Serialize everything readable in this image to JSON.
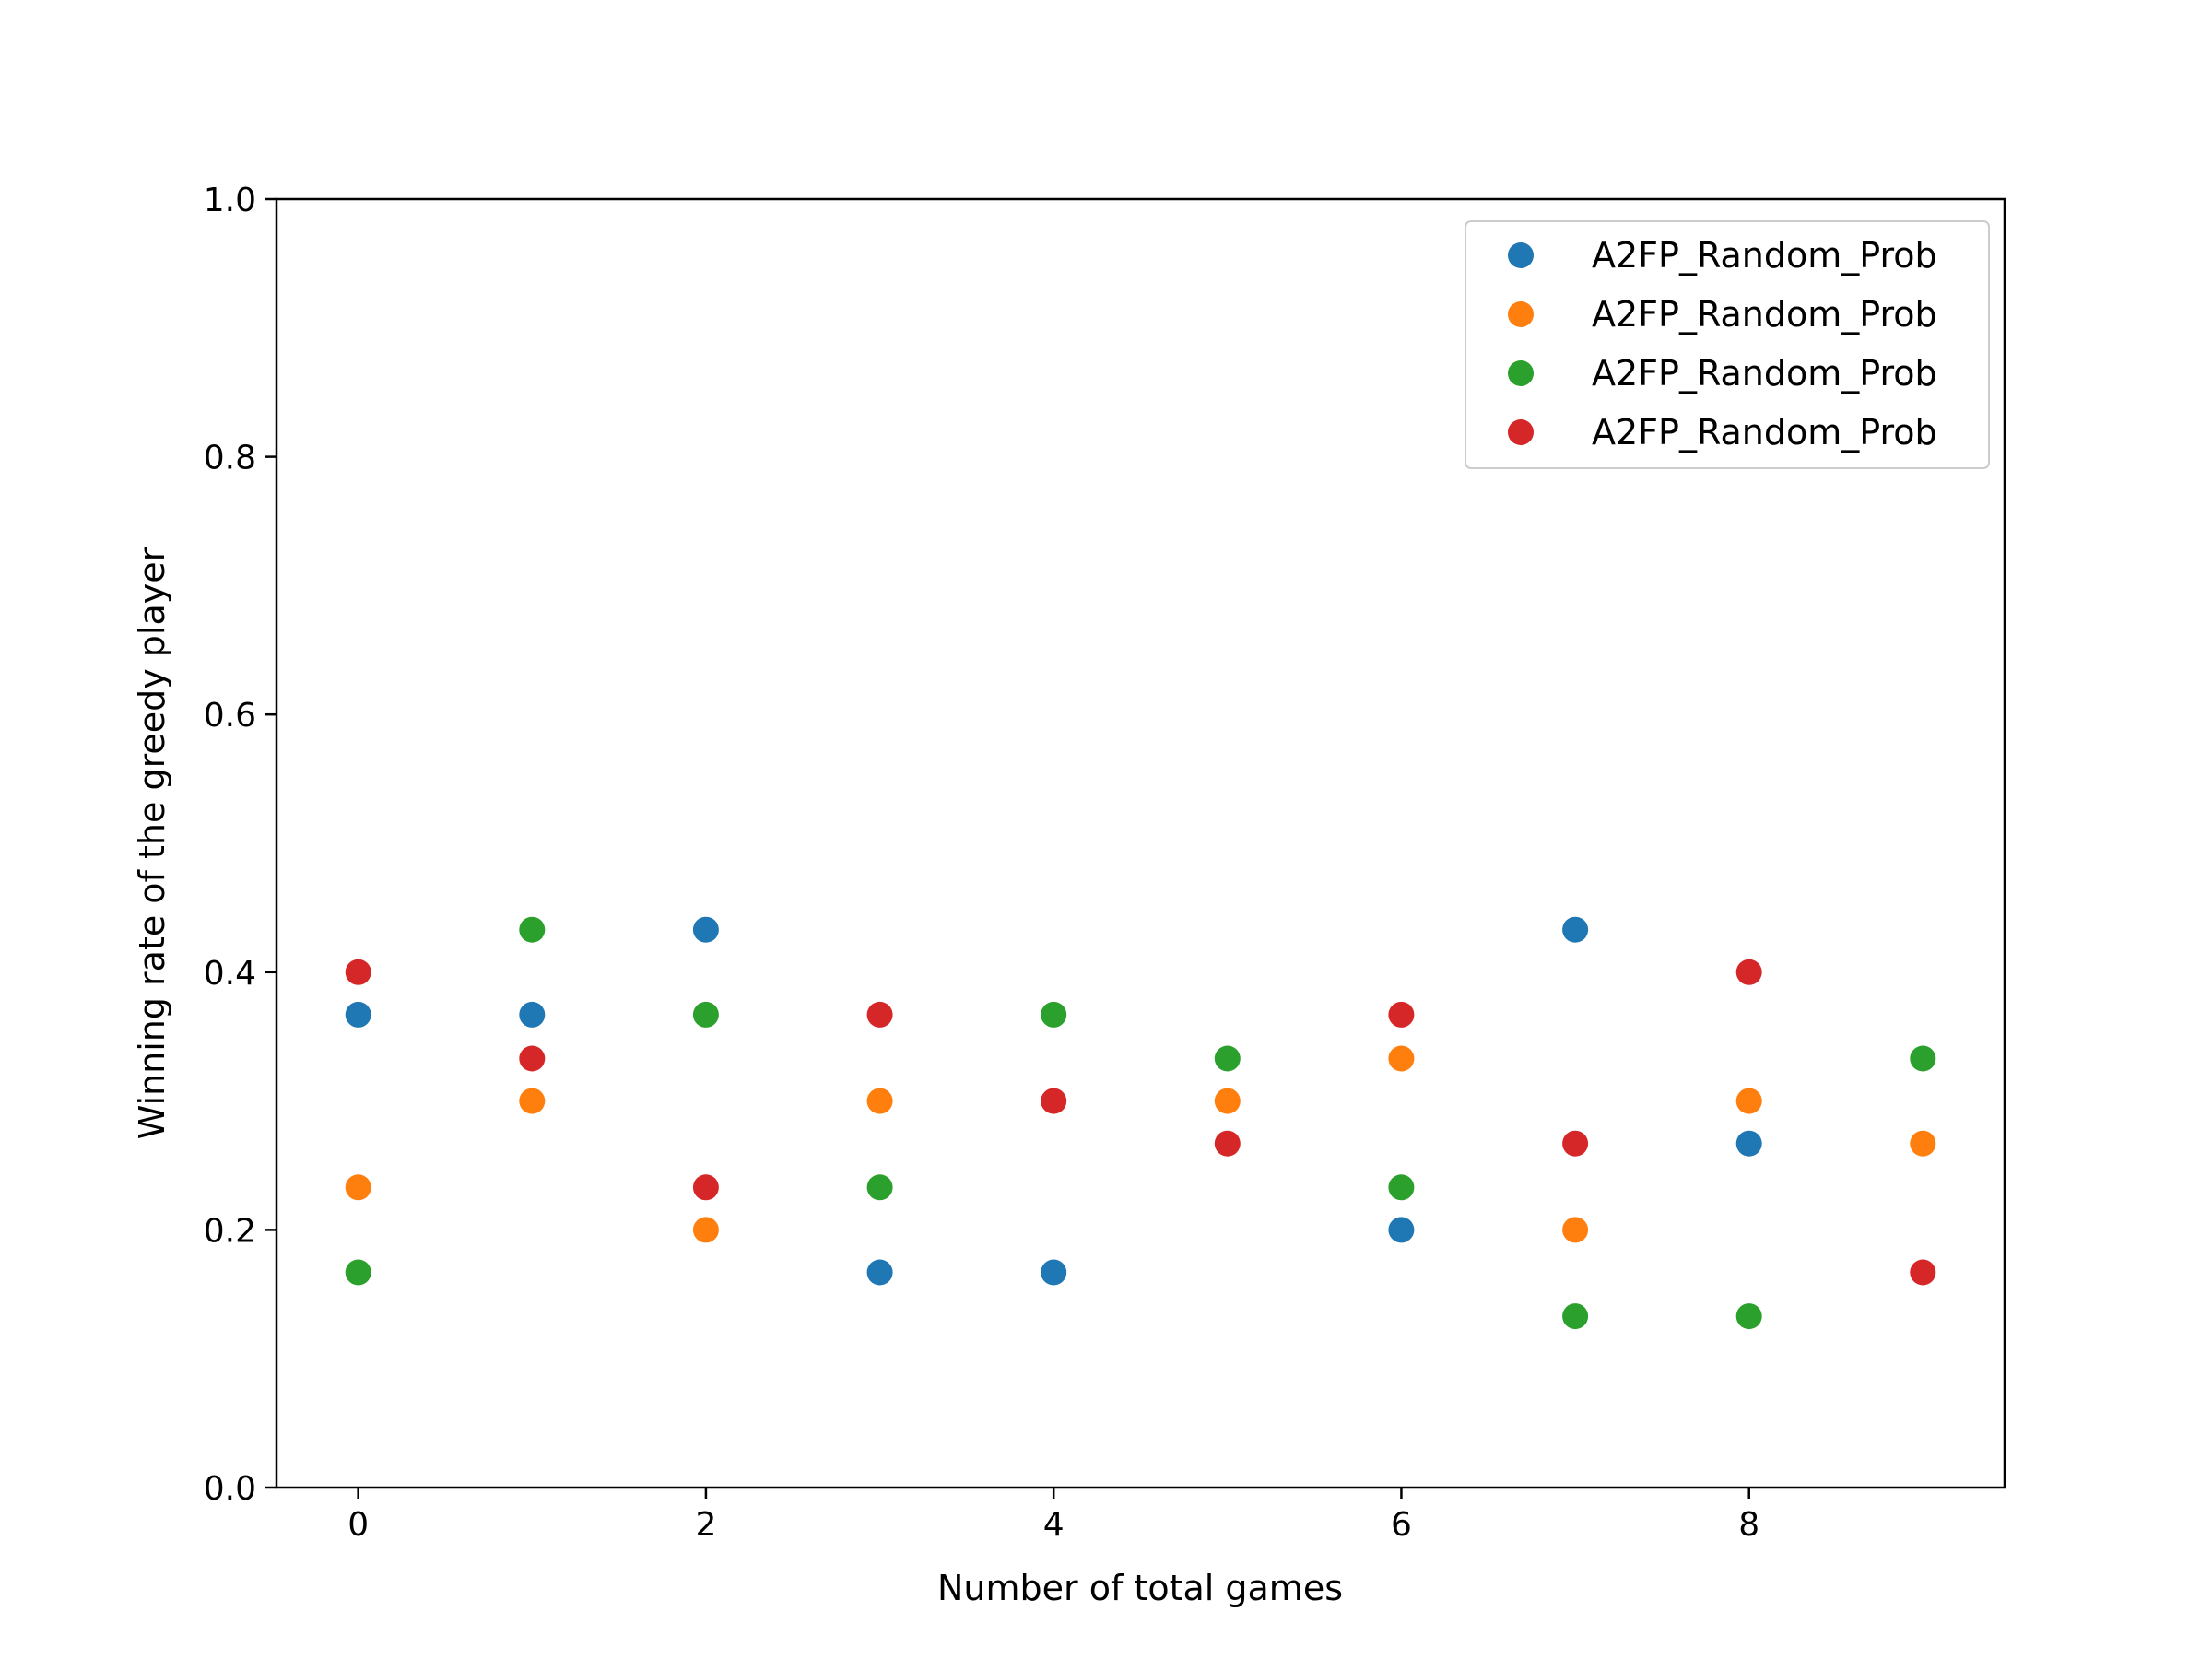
{
  "chart_data": {
    "type": "scatter",
    "title": "",
    "xlabel": "Number of total games",
    "ylabel": "Winning rate of the greedy player",
    "xlim": [
      -0.47,
      9.47
    ],
    "ylim": [
      0.0,
      1.0
    ],
    "x_ticks": [
      "0",
      "2",
      "4",
      "6",
      "8"
    ],
    "x_tick_values": [
      0,
      2,
      4,
      6,
      8
    ],
    "y_ticks": [
      "0.0",
      "0.2",
      "0.4",
      "0.6",
      "0.8",
      "1.0"
    ],
    "y_tick_values": [
      0.0,
      0.2,
      0.4,
      0.6,
      0.8,
      1.0
    ],
    "grid": false,
    "legend_position": "top-right",
    "x": [
      0,
      1,
      2,
      3,
      4,
      5,
      6,
      7,
      8,
      9
    ],
    "series": [
      {
        "name": "A2FP_Random_Prob",
        "color": "#1f77b4",
        "values": [
          0.367,
          0.367,
          0.433,
          0.167,
          0.167,
          null,
          0.2,
          0.433,
          0.267,
          null
        ]
      },
      {
        "name": "A2FP_Random_Prob",
        "color": "#ff7f0e",
        "values": [
          0.233,
          0.3,
          0.2,
          0.3,
          null,
          0.3,
          0.333,
          0.2,
          0.3,
          0.267
        ]
      },
      {
        "name": "A2FP_Random_Prob",
        "color": "#2ca02c",
        "values": [
          0.167,
          0.433,
          0.367,
          0.233,
          0.367,
          0.333,
          0.233,
          0.133,
          0.133,
          0.333
        ]
      },
      {
        "name": "A2FP_Random_Prob",
        "color": "#d62728",
        "values": [
          0.4,
          0.333,
          0.233,
          0.367,
          0.3,
          0.267,
          0.367,
          0.267,
          0.4,
          0.167
        ]
      }
    ]
  }
}
